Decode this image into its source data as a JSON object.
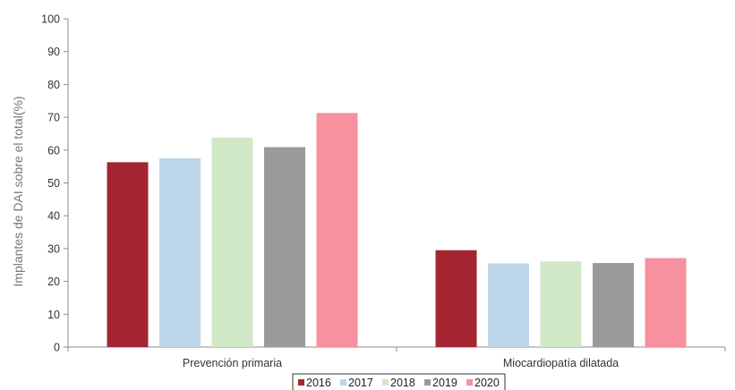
{
  "chart_data": {
    "type": "bar",
    "categories": [
      "Prevención primaria",
      "Miocardiopatía dilatada"
    ],
    "series": [
      {
        "name": "2016",
        "color": "#a52533",
        "values": [
          56.3,
          29.5
        ]
      },
      {
        "name": "2017",
        "color": "#bdd5e8",
        "values": [
          57.5,
          25.5
        ]
      },
      {
        "name": "2018",
        "color": "#d1e8c7",
        "values": [
          63.8,
          26.1
        ]
      },
      {
        "name": "2019",
        "color": "#9a9a9a",
        "values": [
          60.9,
          25.6
        ]
      },
      {
        "name": "2020",
        "color": "#f7909f",
        "values": [
          71.3,
          27.1
        ]
      }
    ],
    "ylabel": "Implantes de DAI sobre el total(%)",
    "xlabel": "",
    "ylim": [
      0,
      100
    ],
    "yticks": [
      0,
      10,
      20,
      30,
      40,
      50,
      60,
      70,
      80,
      90,
      100
    ],
    "grid": false,
    "legend_position": "bottom"
  }
}
